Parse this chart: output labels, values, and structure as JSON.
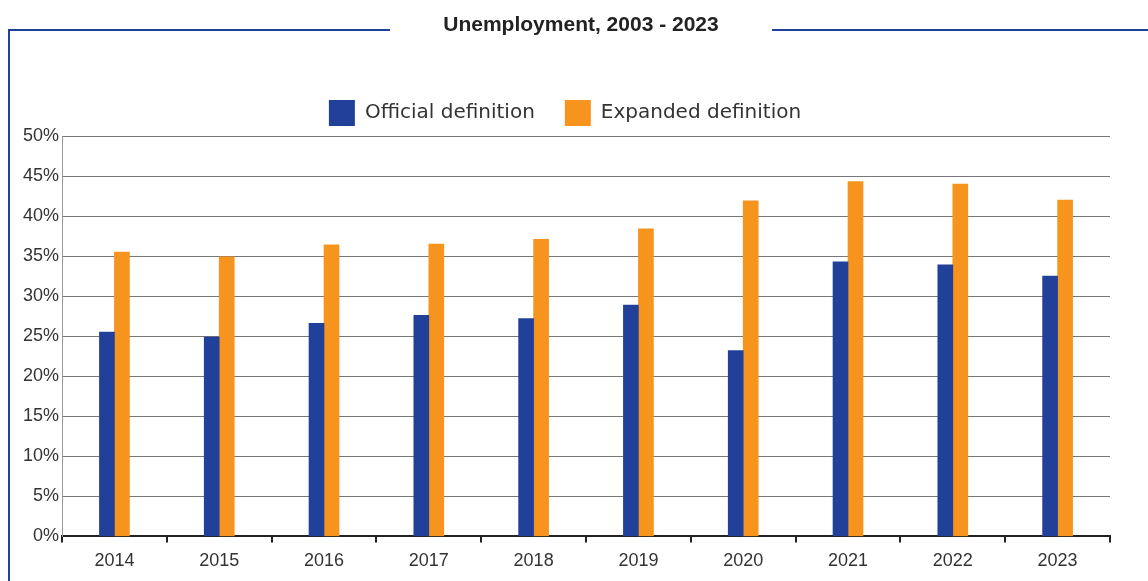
{
  "chart_data": {
    "type": "bar",
    "title": "Unemployment, 2003 - 2023",
    "categories": [
      "2014",
      "2015",
      "2016",
      "2017",
      "2018",
      "2019",
      "2020",
      "2021",
      "2022",
      "2023"
    ],
    "series": [
      {
        "name": "Official definition",
        "color": "#21409a",
        "values": [
          25.5,
          24.9,
          26.6,
          27.6,
          27.2,
          28.9,
          23.2,
          34.3,
          33.9,
          32.5
        ]
      },
      {
        "name": "Expanded definition",
        "color": "#f7941d",
        "values": [
          35.5,
          34.9,
          36.4,
          36.5,
          37.1,
          38.4,
          41.9,
          44.3,
          44.0,
          42.0
        ]
      }
    ],
    "ylim": [
      0,
      50
    ],
    "yticks": [
      {
        "value": 0,
        "label": "0%"
      },
      {
        "value": 5,
        "label": "5%"
      },
      {
        "value": 10,
        "label": "10%"
      },
      {
        "value": 15,
        "label": "15%"
      },
      {
        "value": 20,
        "label": "20%"
      },
      {
        "value": 25,
        "label": "25%"
      },
      {
        "value": 30,
        "label": "30%"
      },
      {
        "value": 35,
        "label": "35%"
      },
      {
        "value": 40,
        "label": "40%"
      },
      {
        "value": 45,
        "label": "45%"
      },
      {
        "value": 50,
        "label": "50%"
      }
    ],
    "grid": "y",
    "legend": "top"
  }
}
